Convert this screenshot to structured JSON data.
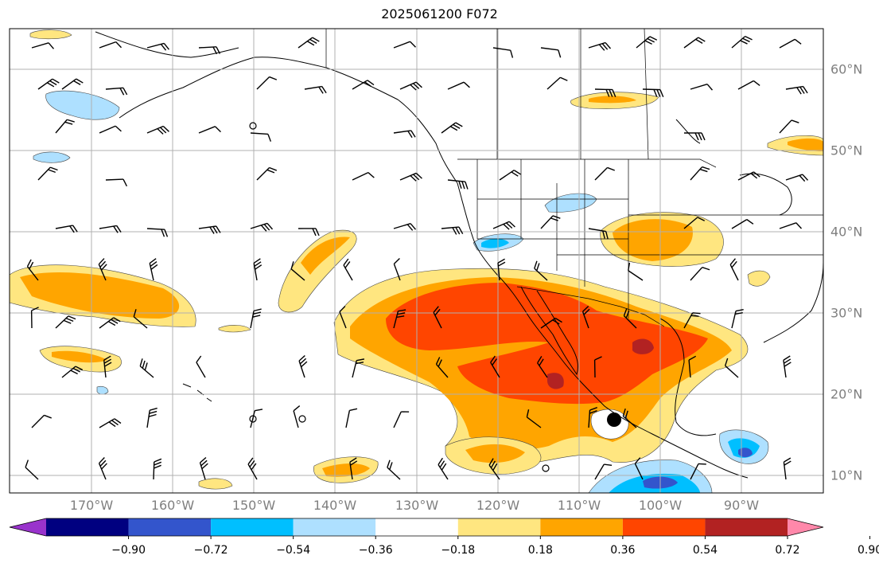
{
  "title": "2025061200 F072",
  "lon_labels": [
    "170°W",
    "160°W",
    "150°W",
    "140°W",
    "130°W",
    "120°W",
    "110°W",
    "100°W",
    "90°W"
  ],
  "lat_labels": [
    "60°N",
    "50°N",
    "40°N",
    "30°N",
    "20°N",
    "10°N"
  ],
  "colorbar": {
    "ticks": [
      "−0.90",
      "−0.72",
      "−0.54",
      "−0.36",
      "−0.18",
      "0.18",
      "0.36",
      "0.54",
      "0.72",
      "0.90"
    ],
    "colors": [
      "#9933cc",
      "#000080",
      "#3355cc",
      "#00bfff",
      "#aee0ff",
      "#ffffff",
      "#ffe680",
      "#ffa500",
      "#ff4500",
      "#b22222",
      "#ff88aa"
    ]
  },
  "colors": {
    "light_yellow": "#ffe680",
    "orange": "#ffa500",
    "red_orange": "#ff4500",
    "dark_red": "#b22222",
    "light_blue": "#aee0ff",
    "sky_blue": "#00bfff",
    "medium_blue": "#3355cc",
    "grid": "#b0b0b0"
  },
  "marker": {
    "label": "station-dot"
  }
}
